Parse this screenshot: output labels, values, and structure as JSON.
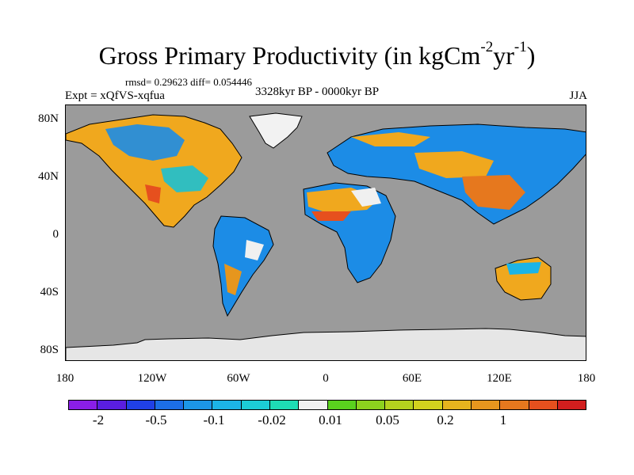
{
  "title": {
    "main": "Gross Primary Productivity (in kgCm",
    "sup1": "-2",
    "mid": "yr",
    "sup2": "-1",
    "end": ")"
  },
  "stats": "rmsd= 0.29623 diff= 0.054446",
  "experiment": "Expt = xQfVS-xqfua",
  "period": "3328kyr BP - 0000kyr BP",
  "season": "JJA",
  "axes": {
    "y_ticks": [
      "80N",
      "40N",
      "0",
      "40S",
      "80S"
    ],
    "x_ticks": [
      "180",
      "120W",
      "60W",
      "0",
      "60E",
      "120E",
      "180"
    ]
  },
  "colorbar": {
    "colors": [
      "#8a1ee8",
      "#5a1ee0",
      "#2040e6",
      "#1c6ee6",
      "#1c96e6",
      "#1cb4e6",
      "#1ccdd6",
      "#1edcb4",
      "#f0f0f0",
      "#5ad21e",
      "#8cd21e",
      "#b4d21e",
      "#d2d21e",
      "#e6b41e",
      "#e6961e",
      "#e6781e",
      "#e6501e",
      "#d21e1e"
    ],
    "labels": [
      "-2",
      "-0.5",
      "-0.1",
      "-0.02",
      "0.01",
      "0.05",
      "0.2",
      "1"
    ]
  },
  "map_colors": {
    "ocean": "#9b9b9b",
    "ice": "#e6e6e6",
    "coast": "#000000"
  }
}
